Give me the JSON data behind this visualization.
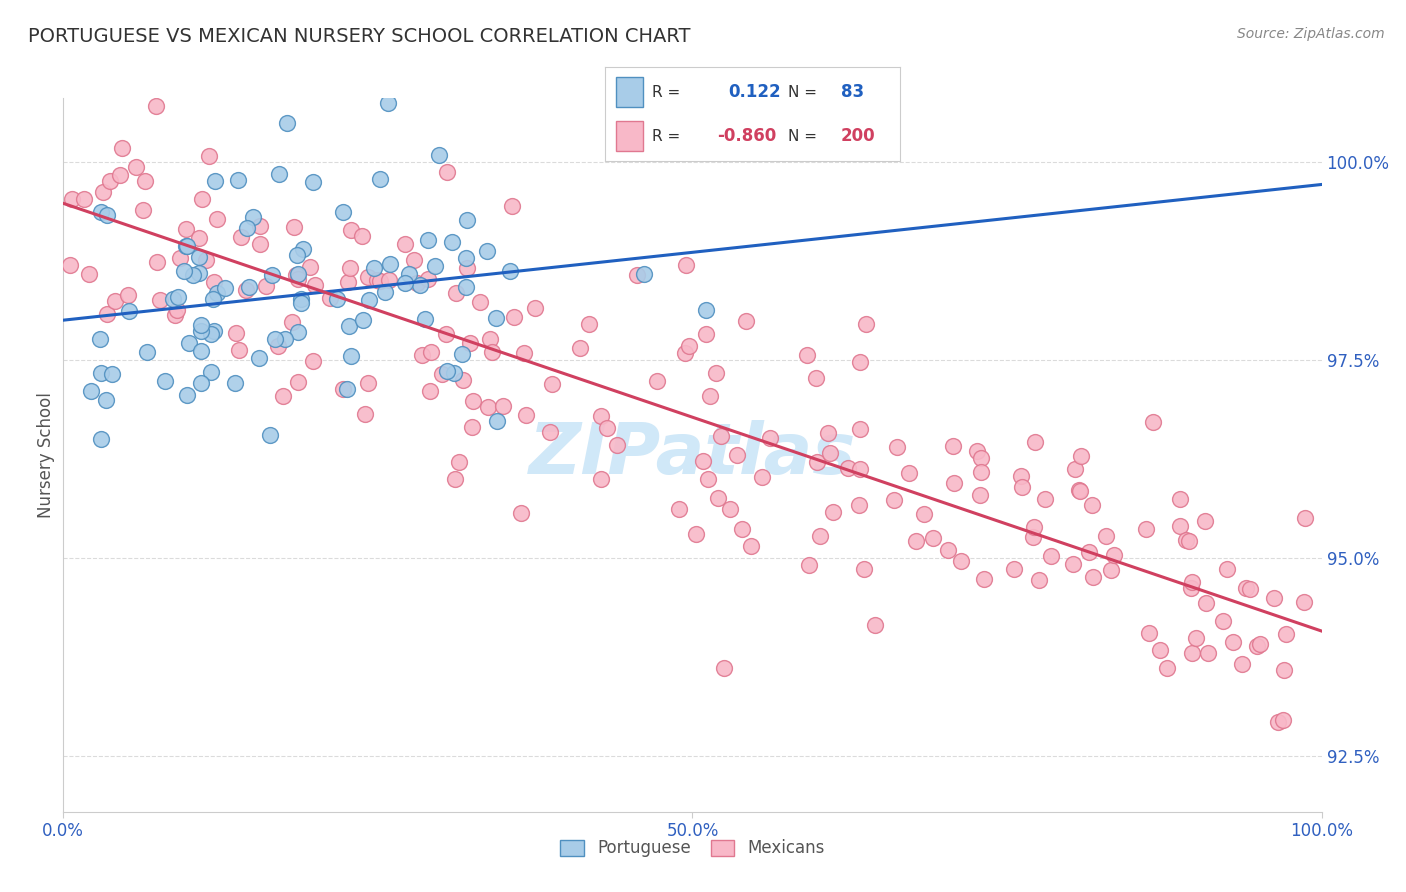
{
  "title": "PORTUGUESE VS MEXICAN NURSERY SCHOOL CORRELATION CHART",
  "source_text": "Source: ZipAtlas.com",
  "ylabel": "Nursery School",
  "xlim": [
    0.0,
    1.0
  ],
  "ylim": [
    0.918,
    1.008
  ],
  "yticks": [
    0.925,
    0.95,
    0.975,
    1.0
  ],
  "ytick_labels": [
    "92.5%",
    "95.0%",
    "97.5%",
    "100.0%"
  ],
  "xticks": [
    0.0,
    0.5,
    1.0
  ],
  "xtick_labels": [
    "0.0%",
    "50.0%",
    "100.0%"
  ],
  "portuguese_R": 0.122,
  "portuguese_N": 83,
  "mexican_R": -0.86,
  "mexican_N": 200,
  "portuguese_color": "#a8cce8",
  "portuguese_edge_color": "#5090c0",
  "mexican_color": "#f8b8c8",
  "mexican_edge_color": "#e07890",
  "portuguese_line_color": "#2060c0",
  "mexican_line_color": "#d04060",
  "legend_bg": "#ffffff",
  "legend_border": "#cccccc",
  "legend_swatch_blue": "#a8cce8",
  "legend_swatch_blue_edge": "#5090c0",
  "legend_swatch_pink": "#f8b8c8",
  "legend_swatch_pink_edge": "#e07890",
  "watermark_text": "ZIPatlas",
  "watermark_color": "#d0e8f8",
  "background_color": "#ffffff",
  "grid_color": "#cccccc",
  "title_color": "#333333",
  "ytick_color": "#3060c0",
  "xtick_color": "#3060c0",
  "ylabel_color": "#555555",
  "source_color": "#888888",
  "legend_text_color": "#333333",
  "legend_value_color_blue": "#2060c0",
  "legend_value_color_pink": "#d04060",
  "bottom_legend_label_color": "#555555"
}
